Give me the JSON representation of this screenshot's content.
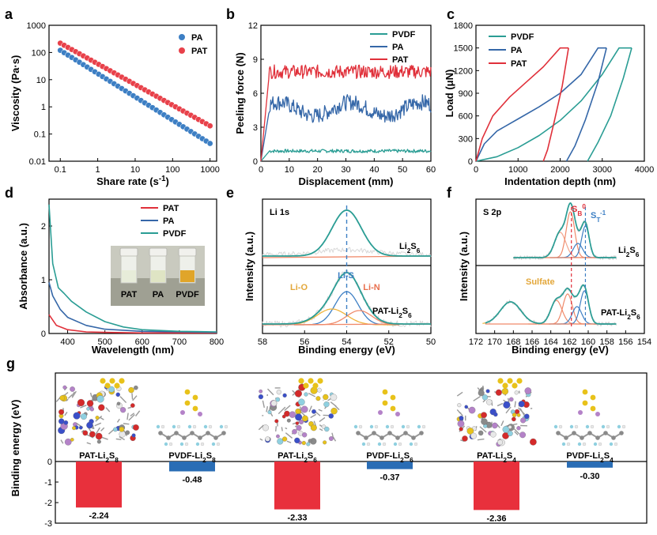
{
  "chart_data": [
    {
      "panel": "a",
      "type": "scatter",
      "xlabel": "Share rate (s",
      "xlabel_sup": "-1",
      "xlabel_end": ")",
      "ylabel": "Viscosity (Pa·s)",
      "xscale": "log",
      "yscale": "log",
      "xlim": [
        0.05,
        1500
      ],
      "ylim": [
        0.01,
        1000
      ],
      "xticks": [
        "0.1",
        "1",
        "10",
        "100",
        "1000"
      ],
      "yticks": [
        "0.01",
        "0.1",
        "1",
        "10",
        "100",
        "1000"
      ],
      "series": [
        {
          "name": "PA",
          "color": "#3d7fc4",
          "x0": 0.1,
          "x1": 1000,
          "y0": 120,
          "y1": 0.045,
          "n": 40
        },
        {
          "name": "PAT",
          "color": "#e8414a",
          "x0": 0.1,
          "x1": 1000,
          "y0": 220,
          "y1": 0.2,
          "n": 40
        }
      ]
    },
    {
      "panel": "b",
      "type": "line",
      "xlabel": "Displacement (mm)",
      "ylabel": "Peeling force (N)",
      "xlim": [
        0,
        60
      ],
      "ylim": [
        0,
        12
      ],
      "xticks": [
        "0",
        "10",
        "20",
        "30",
        "40",
        "50",
        "60"
      ],
      "yticks": [
        "0",
        "3",
        "6",
        "9",
        "12"
      ],
      "series": [
        {
          "name": "PVDF",
          "color": "#2a9d94",
          "plateau": 0.9
        },
        {
          "name": "PA",
          "color": "#3567a8",
          "plateau": 4.6
        },
        {
          "name": "PAT",
          "color": "#e0303a",
          "plateau": 7.9
        }
      ]
    },
    {
      "panel": "c",
      "type": "line",
      "xlabel": "Indentation depth (nm)",
      "ylabel": "Load (μN)",
      "xlim": [
        0,
        4000
      ],
      "ylim": [
        0,
        1800
      ],
      "xticks": [
        "0",
        "1000",
        "2000",
        "3000",
        "4000"
      ],
      "yticks": [
        "0",
        "300",
        "600",
        "900",
        "1200",
        "1500",
        "1800"
      ],
      "series": [
        {
          "name": "PVDF",
          "color": "#2a9d94",
          "load_path": [
            [
              0,
              0
            ],
            [
              500,
              60
            ],
            [
              1000,
              180
            ],
            [
              1500,
              340
            ],
            [
              2000,
              540
            ],
            [
              2500,
              800
            ],
            [
              3000,
              1150
            ],
            [
              3400,
              1500
            ],
            [
              3700,
              1500
            ]
          ],
          "unload_path": [
            [
              3700,
              1500
            ],
            [
              3500,
              1100
            ],
            [
              3200,
              600
            ],
            [
              2900,
              250
            ],
            [
              2650,
              0
            ]
          ]
        },
        {
          "name": "PA",
          "color": "#3567a8",
          "load_path": [
            [
              0,
              0
            ],
            [
              200,
              230
            ],
            [
              500,
              400
            ],
            [
              1000,
              560
            ],
            [
              1500,
              720
            ],
            [
              2000,
              900
            ],
            [
              2500,
              1150
            ],
            [
              2900,
              1500
            ],
            [
              3100,
              1500
            ]
          ],
          "unload_path": [
            [
              3100,
              1500
            ],
            [
              2900,
              1050
            ],
            [
              2600,
              550
            ],
            [
              2350,
              200
            ],
            [
              2150,
              0
            ]
          ]
        },
        {
          "name": "PAT",
          "color": "#e0303a",
          "load_path": [
            [
              0,
              0
            ],
            [
              150,
              300
            ],
            [
              400,
              600
            ],
            [
              800,
              850
            ],
            [
              1200,
              1050
            ],
            [
              1600,
              1250
            ],
            [
              2000,
              1500
            ],
            [
              2200,
              1500
            ]
          ],
          "unload_path": [
            [
              2200,
              1500
            ],
            [
              2050,
              1000
            ],
            [
              1850,
              500
            ],
            [
              1700,
              150
            ],
            [
              1600,
              0
            ]
          ]
        }
      ]
    },
    {
      "panel": "d",
      "type": "line",
      "xlabel": "Wavelength (nm)",
      "ylabel": "Absorbance (a.u.)",
      "xlim": [
        350,
        800
      ],
      "ylim": [
        0,
        2.5
      ],
      "xticks": [
        "400",
        "500",
        "600",
        "700",
        "800"
      ],
      "yticks": [
        "0",
        "1",
        "2"
      ],
      "series": [
        {
          "name": "PAT",
          "color": "#e0303a",
          "points": [
            [
              350,
              0.35
            ],
            [
              370,
              0.15
            ],
            [
              400,
              0.07
            ],
            [
              450,
              0.03
            ],
            [
              500,
              0.02
            ],
            [
              600,
              0.01
            ],
            [
              800,
              0.01
            ]
          ]
        },
        {
          "name": "PA",
          "color": "#3567a8",
          "points": [
            [
              350,
              0.95
            ],
            [
              360,
              0.7
            ],
            [
              380,
              0.45
            ],
            [
              400,
              0.3
            ],
            [
              450,
              0.15
            ],
            [
              500,
              0.08
            ],
            [
              600,
              0.04
            ],
            [
              800,
              0.02
            ]
          ]
        },
        {
          "name": "PVDF",
          "color": "#2a9d94",
          "points": [
            [
              350,
              2.4
            ],
            [
              360,
              1.3
            ],
            [
              375,
              0.85
            ],
            [
              390,
              0.75
            ],
            [
              410,
              0.6
            ],
            [
              450,
              0.4
            ],
            [
              500,
              0.22
            ],
            [
              550,
              0.12
            ],
            [
              600,
              0.07
            ],
            [
              700,
              0.04
            ],
            [
              800,
              0.03
            ]
          ]
        }
      ],
      "inset_labels": [
        "PAT",
        "PA",
        "PVDF"
      ]
    },
    {
      "panel": "e",
      "type": "line",
      "xlabel": "Binding energy (eV)",
      "ylabel": "Intensity (a.u.)",
      "xlim": [
        58,
        50
      ],
      "xticks": [
        "58",
        "56",
        "54",
        "52",
        "50"
      ],
      "title": "Li 1s",
      "top_label": "Li",
      "top_label_sub": "2",
      "top_label_end": "S",
      "top_label_sub2": "6",
      "bottom_label": "PAT-Li",
      "bottom_label_sub": "2",
      "bottom_label_end": "S",
      "bottom_label_sub2": "6",
      "annotations": [
        "Li-S",
        "Li-O",
        "Li-N"
      ],
      "peak_center": 54.0
    },
    {
      "panel": "f",
      "type": "line",
      "xlabel": "Binding energy (eV)",
      "ylabel": "Intensity (a.u.)",
      "xlim": [
        172,
        154
      ],
      "xticks": [
        "172",
        "170",
        "168",
        "166",
        "164",
        "162",
        "160",
        "158",
        "156",
        "154"
      ],
      "title": "S 2p",
      "top_label": "Li",
      "top_label_sub": "2",
      "top_label_end": "S",
      "top_label_sub2": "6",
      "bottom_label": "PAT-Li",
      "bottom_label_sub": "2",
      "bottom_label_end": "S",
      "bottom_label_sub2": "6",
      "annotations": [
        "Sulfate",
        "S",
        "S"
      ],
      "ann_sup": [
        "0",
        "-1"
      ],
      "ann_sub": [
        "B",
        "T"
      ]
    },
    {
      "panel": "g",
      "type": "bar",
      "ylabel": "Binding energy (eV)",
      "ylim": [
        -3,
        0.4
      ],
      "yticks": [
        "0",
        "-1",
        "-2",
        "-3"
      ],
      "categories": [
        "PAT-Li2S8",
        "PVDF-Li2S8",
        "PAT-Li2S6",
        "PVDF-Li2S6",
        "PAT-Li2S4",
        "PVDF-Li2S4"
      ],
      "category_labels": [
        {
          "a": "PAT-Li",
          "s1": "2",
          "b": "S",
          "s2": "8"
        },
        {
          "a": "PVDF-Li",
          "s1": "2",
          "b": "S",
          "s2": "8"
        },
        {
          "a": "PAT-Li",
          "s1": "2",
          "b": "S",
          "s2": "6"
        },
        {
          "a": "PVDF-Li",
          "s1": "2",
          "b": "S",
          "s2": "6"
        },
        {
          "a": "PAT-Li",
          "s1": "2",
          "b": "S",
          "s2": "4"
        },
        {
          "a": "PVDF-Li",
          "s1": "2",
          "b": "S",
          "s2": "4"
        }
      ],
      "values": [
        -2.24,
        -0.48,
        -2.33,
        -0.37,
        -2.36,
        -0.3
      ],
      "value_labels": [
        "-2.24",
        "-0.48",
        "-2.33",
        "-0.37",
        "-2.36",
        "-0.30"
      ],
      "colors": [
        "#e8303c",
        "#2a6db5",
        "#e8303c",
        "#2a6db5",
        "#e8303c",
        "#2a6db5"
      ]
    }
  ],
  "panel_letters": [
    "a",
    "b",
    "c",
    "d",
    "e",
    "f",
    "g"
  ]
}
